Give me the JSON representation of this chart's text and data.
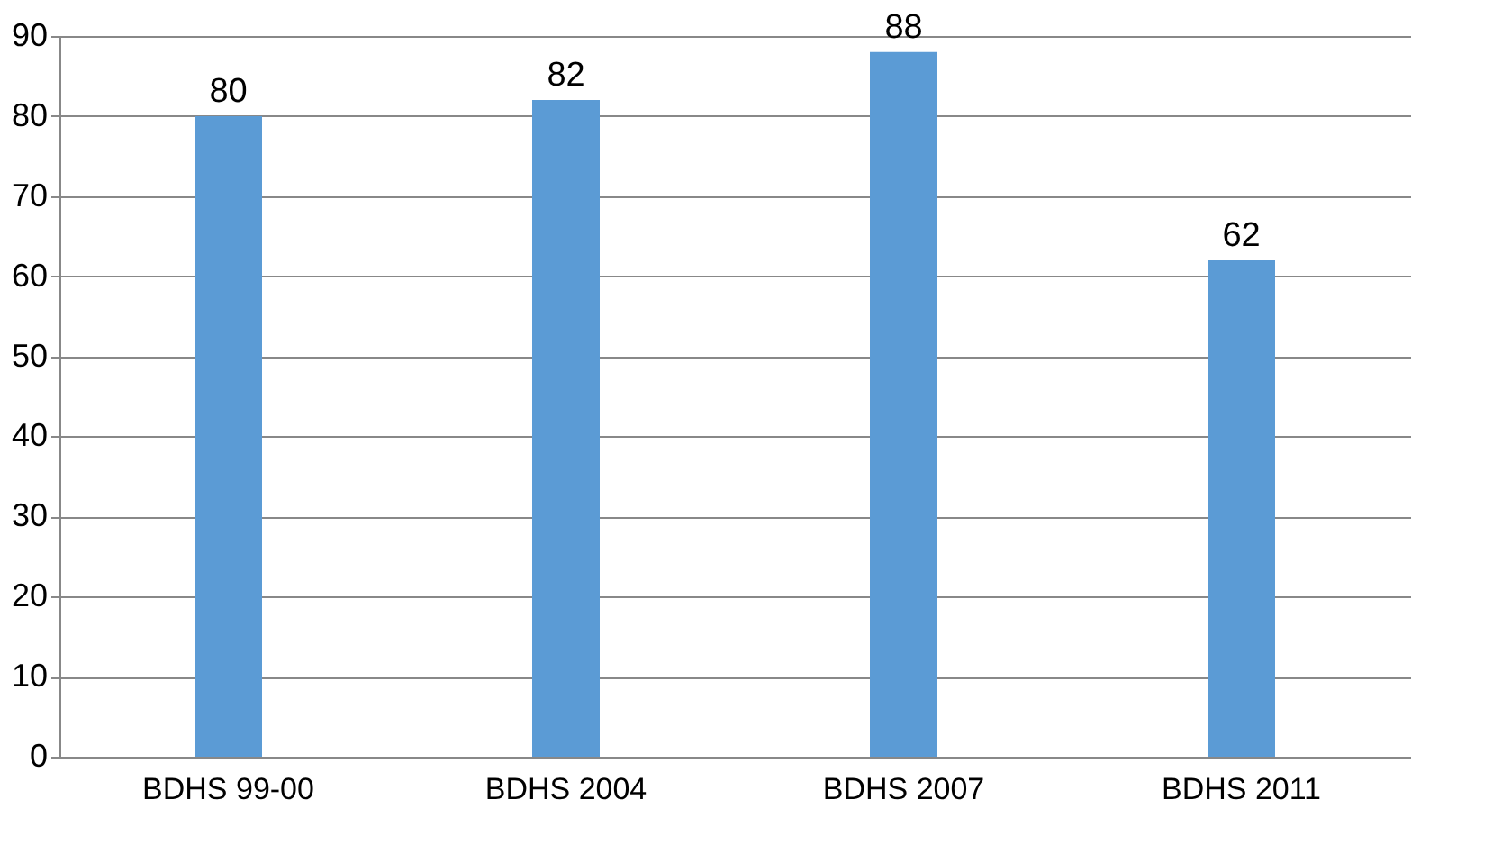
{
  "chart_data": {
    "type": "bar",
    "categories": [
      "BDHS 99-00",
      "BDHS 2004",
      "BDHS 2007",
      "BDHS 2011"
    ],
    "values": [
      80,
      82,
      88,
      62
    ],
    "color": "#5b9bd5",
    "ylim": [
      0,
      90
    ],
    "yticks": [
      0,
      10,
      20,
      30,
      40,
      50,
      60,
      70,
      80,
      90
    ],
    "grid": "y",
    "data_labels": true
  }
}
